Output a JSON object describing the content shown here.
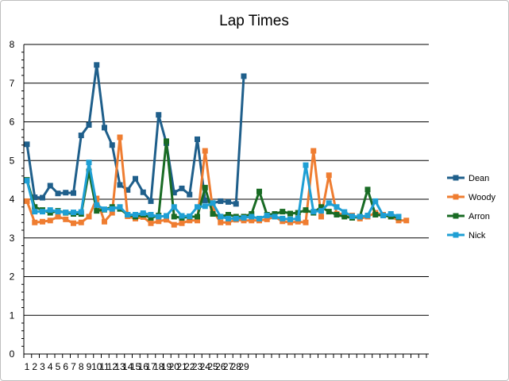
{
  "chart_data": {
    "type": "line",
    "title": "Lap Times",
    "ylim": [
      0,
      8
    ],
    "y_ticks": [
      0,
      1,
      2,
      3,
      4,
      5,
      6,
      7,
      8
    ],
    "x_tick_labels": [
      "1",
      "2",
      "3",
      "4",
      "5",
      "6",
      "7",
      "8",
      "9",
      "10",
      "11",
      "12",
      "13",
      "14",
      "15",
      "16",
      "17",
      "18",
      "19",
      "20",
      "21",
      "22",
      "23",
      "24",
      "25",
      "26",
      "27",
      "28",
      "29"
    ],
    "grid": true,
    "legend_position": "right",
    "series": [
      {
        "name": "Dean",
        "color": "#1f5f8b",
        "values": [
          5.42,
          4.05,
          4.04,
          4.35,
          4.15,
          4.17,
          4.16,
          5.65,
          5.92,
          7.47,
          5.85,
          5.4,
          4.37,
          4.24,
          4.53,
          4.18,
          3.95,
          6.18,
          5.45,
          4.17,
          4.28,
          4.12,
          5.55,
          3.97,
          3.9,
          3.95,
          3.93,
          3.88,
          7.18
        ]
      },
      {
        "name": "Woody",
        "color": "#ef7d31",
        "values": [
          3.95,
          3.4,
          3.42,
          3.45,
          3.55,
          3.48,
          3.38,
          3.4,
          3.55,
          4.02,
          3.42,
          3.65,
          5.6,
          3.56,
          3.5,
          3.54,
          3.38,
          3.43,
          3.47,
          3.34,
          3.38,
          3.45,
          3.45,
          5.25,
          3.72,
          3.4,
          3.4,
          3.47,
          3.45,
          3.45,
          3.45,
          3.48,
          3.55,
          3.43,
          3.4,
          3.42,
          3.4,
          5.25,
          3.55,
          4.62,
          3.62,
          3.62,
          3.58,
          3.5,
          3.55,
          3.65,
          3.6,
          3.55,
          3.45,
          3.45
        ]
      },
      {
        "name": "Arron",
        "color": "#196b24",
        "values": [
          4.5,
          3.8,
          3.72,
          3.65,
          3.7,
          3.65,
          3.62,
          3.62,
          4.72,
          3.7,
          3.73,
          3.8,
          3.75,
          3.6,
          3.55,
          3.6,
          3.52,
          3.58,
          5.5,
          3.55,
          3.52,
          3.55,
          3.55,
          4.3,
          3.62,
          3.55,
          3.6,
          3.55,
          3.55,
          3.62,
          4.2,
          3.6,
          3.62,
          3.68,
          3.63,
          3.65,
          3.72,
          3.65,
          3.8,
          3.68,
          3.6,
          3.55,
          3.52,
          3.55,
          4.25,
          3.6,
          3.58,
          3.55,
          3.53
        ]
      },
      {
        "name": "Nick",
        "color": "#1f9fd4",
        "values": [
          4.48,
          3.68,
          3.68,
          3.72,
          3.68,
          3.66,
          3.66,
          3.67,
          4.95,
          3.85,
          3.74,
          3.75,
          3.8,
          3.6,
          3.6,
          3.64,
          3.6,
          3.55,
          3.57,
          3.8,
          3.57,
          3.56,
          3.8,
          3.82,
          3.9,
          3.55,
          3.5,
          3.5,
          3.52,
          3.55,
          3.5,
          3.58,
          3.55,
          3.5,
          3.48,
          3.5,
          4.88,
          3.68,
          3.7,
          3.9,
          3.8,
          3.67,
          3.56,
          3.55,
          3.58,
          3.95,
          3.58,
          3.62,
          3.55
        ]
      }
    ]
  }
}
